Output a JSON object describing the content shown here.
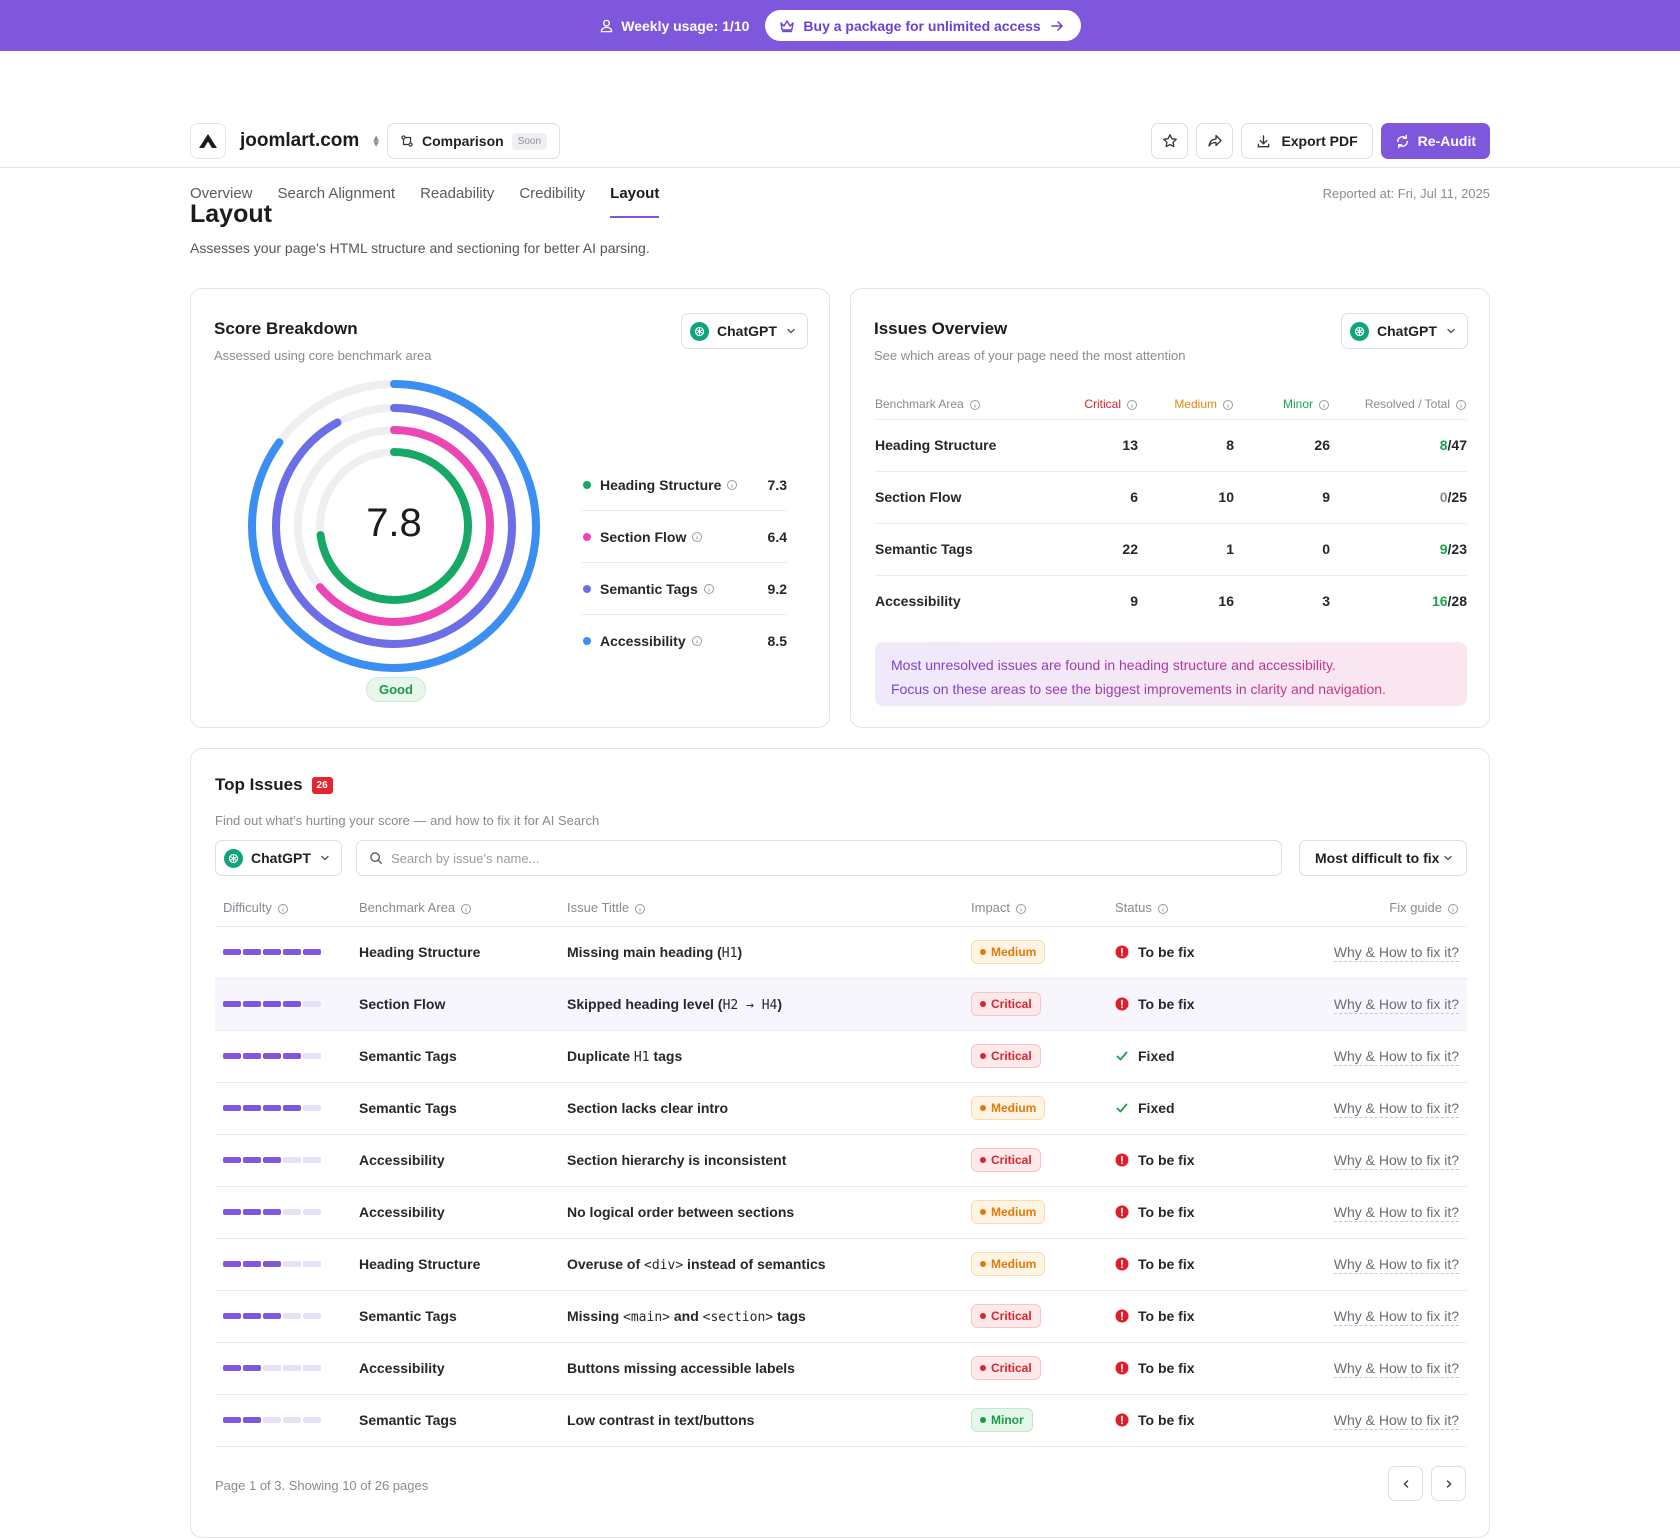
{
  "banner": {
    "usage": "Weekly usage: 1/10",
    "buy_label": "Buy a package for unlimited access"
  },
  "header": {
    "site_name": "joomlart.com",
    "comparison_label": "Comparison",
    "soon_label": "Soon",
    "export_label": "Export PDF",
    "reaudit_label": "Re-Audit",
    "reported_at": "Reported at: Fri, Jul 11, 2025",
    "tabs": [
      {
        "label": "Overview",
        "active": false
      },
      {
        "label": "Search Alignment",
        "active": false
      },
      {
        "label": "Readability",
        "active": false
      },
      {
        "label": "Credibility",
        "active": false
      },
      {
        "label": "Layout",
        "active": true
      }
    ]
  },
  "page": {
    "title": "Layout",
    "subtitle": "Assesses your page's HTML structure and sectioning for better AI parsing."
  },
  "score": {
    "title": "Score Breakdown",
    "subtitle": "Assessed using core benchmark area",
    "model": "ChatGPT",
    "overall": "7.8",
    "rating": "Good",
    "items": [
      {
        "label": "Heading Structure",
        "value": "7.3",
        "score": 7.3,
        "color": "#16a865"
      },
      {
        "label": "Section Flow",
        "value": "6.4",
        "score": 6.4,
        "color": "#ec45b4"
      },
      {
        "label": "Semantic Tags",
        "value": "9.2",
        "score": 9.2,
        "color": "#6b6ee6"
      },
      {
        "label": "Accessibility",
        "value": "8.5",
        "score": 8.5,
        "color": "#3b8ff2"
      }
    ]
  },
  "overview": {
    "title": "Issues Overview",
    "subtitle": "See which areas of your page need the most attention",
    "model": "ChatGPT",
    "columns": {
      "area": "Benchmark Area",
      "critical": "Critical",
      "medium": "Medium",
      "minor": "Minor",
      "resolved": "Resolved / Total"
    },
    "rows": [
      {
        "area": "Heading Structure",
        "critical": "13",
        "medium": "8",
        "minor": "26",
        "resolved": "8",
        "total": "/47",
        "resolved_positive": true
      },
      {
        "area": "Section Flow",
        "critical": "6",
        "medium": "10",
        "minor": "9",
        "resolved": "0",
        "total": "/25",
        "resolved_positive": false
      },
      {
        "area": "Semantic Tags",
        "critical": "22",
        "medium": "1",
        "minor": "0",
        "resolved": "9",
        "total": "/23",
        "resolved_positive": true
      },
      {
        "area": "Accessibility",
        "critical": "9",
        "medium": "16",
        "minor": "3",
        "resolved": "16",
        "total": "/28",
        "resolved_positive": true
      }
    ],
    "note_line1": "Most unresolved issues are found in heading structure and accessibility.",
    "note_line2": "Focus on these areas to see the biggest improvements in clarity and navigation."
  },
  "top_issues": {
    "title": "Top Issues",
    "count": "26",
    "subtitle": "Find out what’s hurting your score — and how to fix it for AI Search",
    "model": "ChatGPT",
    "search_placeholder": "Search by issue's name...",
    "sort_label": "Most difficult to fix",
    "columns": {
      "difficulty": "Difficulty",
      "area": "Benchmark Area",
      "title": "Issue Tittle",
      "impact": "Impact",
      "status": "Status",
      "fix": "Fix guide"
    },
    "rows": [
      {
        "difficulty": 5,
        "area": "Heading Structure",
        "title_parts": [
          "Missing main heading (",
          "H1",
          ")"
        ],
        "impact": "Medium",
        "status": "To be fix",
        "fix": "Why & How to fix it?"
      },
      {
        "difficulty": 4,
        "area": "Section Flow",
        "title_parts": [
          "Skipped heading level (",
          "H2 → H4",
          ")"
        ],
        "impact": "Critical",
        "status": "To be fix",
        "fix": "Why & How to fix it?"
      },
      {
        "difficulty": 4,
        "area": "Semantic Tags",
        "title_parts": [
          "Duplicate ",
          "H1",
          " tags"
        ],
        "impact": "Critical",
        "status": "Fixed",
        "fix": "Why & How to fix it?"
      },
      {
        "difficulty": 4,
        "area": "Semantic Tags",
        "title_parts": [
          "Section lacks clear intro"
        ],
        "impact": "Medium",
        "status": "Fixed",
        "fix": "Why & How to fix it?"
      },
      {
        "difficulty": 3,
        "area": "Accessibility",
        "title_parts": [
          "Section hierarchy is inconsistent"
        ],
        "impact": "Critical",
        "status": "To be fix",
        "fix": "Why & How to fix it?"
      },
      {
        "difficulty": 3,
        "area": "Accessibility",
        "title_parts": [
          "No logical order between sections"
        ],
        "impact": "Medium",
        "status": "To be fix",
        "fix": "Why & How to fix it?"
      },
      {
        "difficulty": 3,
        "area": "Heading Structure",
        "title_parts": [
          "Overuse of ",
          "<div>",
          " instead of semantics"
        ],
        "impact": "Medium",
        "status": "To be fix",
        "fix": "Why & How to fix it?"
      },
      {
        "difficulty": 3,
        "area": "Semantic Tags",
        "title_parts": [
          "Missing ",
          "<main>",
          " and ",
          "<section>",
          " tags"
        ],
        "impact": "Critical",
        "status": "To be fix",
        "fix": "Why & How to fix it?"
      },
      {
        "difficulty": 2,
        "area": "Accessibility",
        "title_parts": [
          "Buttons missing accessible labels"
        ],
        "impact": "Critical",
        "status": "To be fix",
        "fix": "Why & How to fix it?"
      },
      {
        "difficulty": 2,
        "area": "Semantic Tags",
        "title_parts": [
          "Low contrast in text/buttons"
        ],
        "impact": "Minor",
        "status": "To be fix",
        "fix": "Why & How to fix it?"
      }
    ],
    "pagination": "Page 1 of 3. Showing 10 of 26 pages"
  }
}
